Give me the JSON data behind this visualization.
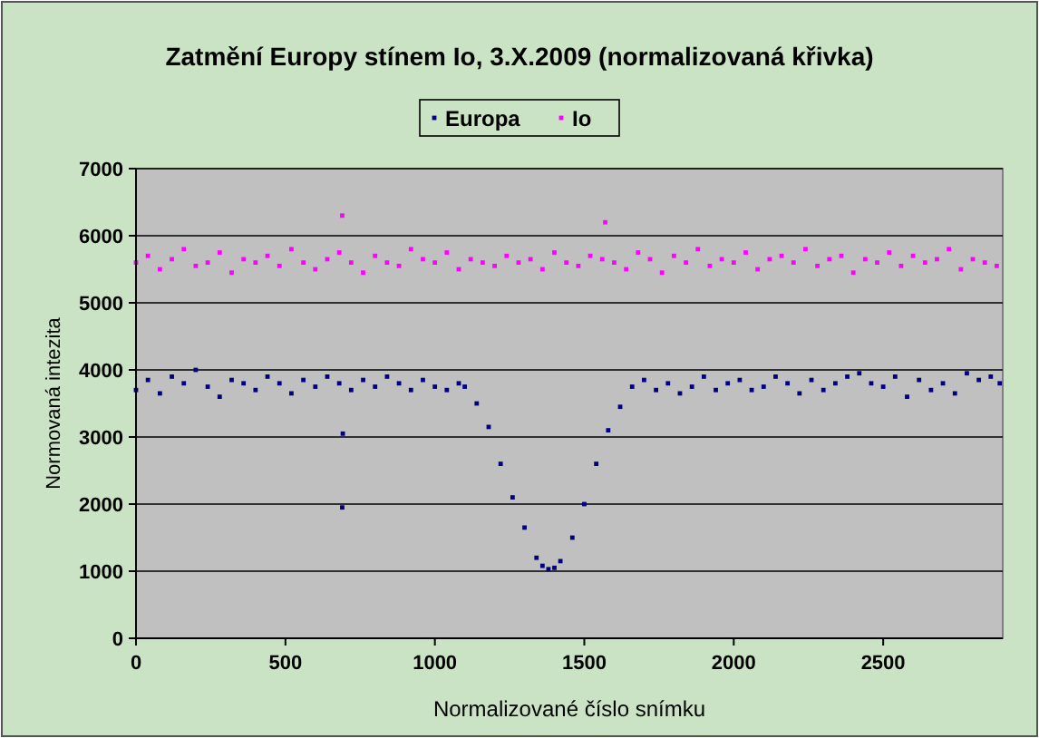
{
  "chart_data": {
    "type": "scatter",
    "title": "Zatmění Europy stínem Io, 3.X.2009 (normalizovaná křivka)",
    "xlabel": "Normalizované číslo snímku",
    "ylabel": "Normovaná intezita",
    "xlim": [
      0,
      2900
    ],
    "xticks": [
      0,
      500,
      1000,
      1500,
      2000,
      2500
    ],
    "ylim": [
      0,
      7000
    ],
    "yticks": [
      0,
      1000,
      2000,
      3000,
      4000,
      5000,
      6000,
      7000
    ],
    "grid": "y",
    "legend": "top",
    "marker": "square",
    "series": [
      {
        "name": "Europa",
        "color": "#000080",
        "x": [
          0,
          40,
          80,
          120,
          160,
          200,
          240,
          280,
          320,
          360,
          400,
          440,
          480,
          520,
          560,
          600,
          640,
          680,
          690,
          692,
          720,
          760,
          800,
          840,
          880,
          920,
          960,
          1000,
          1040,
          1080,
          1100,
          1140,
          1180,
          1220,
          1260,
          1300,
          1340,
          1360,
          1380,
          1400,
          1420,
          1460,
          1500,
          1540,
          1580,
          1620,
          1660,
          1700,
          1740,
          1780,
          1820,
          1860,
          1900,
          1940,
          1980,
          2020,
          2060,
          2100,
          2140,
          2180,
          2220,
          2260,
          2300,
          2340,
          2380,
          2420,
          2460,
          2500,
          2540,
          2580,
          2620,
          2660,
          2700,
          2740,
          2780,
          2820,
          2860,
          2890
        ],
        "values": [
          3700,
          3850,
          3650,
          3900,
          3800,
          4000,
          3750,
          3600,
          3850,
          3800,
          3700,
          3900,
          3800,
          3650,
          3850,
          3750,
          3900,
          3800,
          1950,
          3050,
          3700,
          3850,
          3750,
          3900,
          3800,
          3700,
          3850,
          3750,
          3700,
          3800,
          3750,
          3500,
          3150,
          2600,
          2100,
          1650,
          1200,
          1080,
          1030,
          1050,
          1150,
          1500,
          2000,
          2600,
          3100,
          3450,
          3750,
          3850,
          3700,
          3800,
          3650,
          3750,
          3900,
          3700,
          3800,
          3850,
          3700,
          3750,
          3900,
          3800,
          3650,
          3850,
          3700,
          3800,
          3900,
          3950,
          3800,
          3750,
          3900,
          3600,
          3850,
          3700,
          3800,
          3650,
          3950,
          3850,
          3900,
          3800
        ]
      },
      {
        "name": "Io",
        "color": "#ff00ff",
        "x": [
          0,
          40,
          80,
          120,
          160,
          200,
          240,
          280,
          320,
          360,
          400,
          440,
          480,
          520,
          560,
          600,
          640,
          680,
          690,
          720,
          760,
          800,
          840,
          880,
          920,
          960,
          1000,
          1040,
          1080,
          1120,
          1160,
          1200,
          1240,
          1280,
          1320,
          1360,
          1400,
          1440,
          1480,
          1520,
          1560,
          1570,
          1600,
          1640,
          1680,
          1720,
          1760,
          1800,
          1840,
          1880,
          1920,
          1960,
          2000,
          2040,
          2080,
          2120,
          2160,
          2200,
          2240,
          2280,
          2320,
          2360,
          2400,
          2440,
          2480,
          2520,
          2560,
          2600,
          2640,
          2680,
          2720,
          2760,
          2800,
          2840,
          2880
        ],
        "values": [
          5600,
          5700,
          5500,
          5650,
          5800,
          5550,
          5600,
          5750,
          5450,
          5650,
          5600,
          5700,
          5550,
          5800,
          5600,
          5500,
          5650,
          5750,
          6300,
          5600,
          5450,
          5700,
          5600,
          5550,
          5800,
          5650,
          5600,
          5750,
          5500,
          5650,
          5600,
          5550,
          5700,
          5600,
          5650,
          5500,
          5750,
          5600,
          5550,
          5700,
          5650,
          6200,
          5600,
          5500,
          5750,
          5650,
          5450,
          5700,
          5600,
          5800,
          5550,
          5650,
          5600,
          5750,
          5500,
          5650,
          5700,
          5600,
          5800,
          5550,
          5650,
          5700,
          5450,
          5650,
          5600,
          5750,
          5550,
          5700,
          5600,
          5650,
          5800,
          5500,
          5650,
          5600,
          5550
        ]
      }
    ]
  }
}
